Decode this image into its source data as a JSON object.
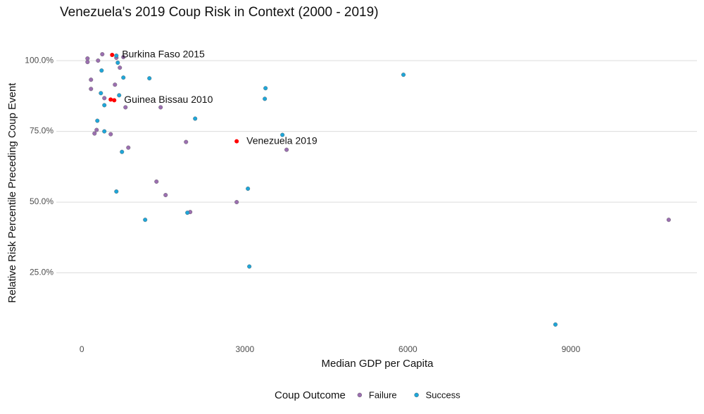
{
  "chart_data": {
    "type": "scatter",
    "title": "Venezuela's 2019 Coup Risk in Context (2000 - 2019)",
    "x_label": "Median GDP per Capita",
    "y_label": "Relative Risk Percentile Preceding Coup Event",
    "legend_title": "Coup Outcome",
    "legend_position": "bottom",
    "grid": true,
    "xlim": [
      -470,
      11320
    ],
    "xticks": [
      0,
      3000,
      6000,
      9000
    ],
    "ylim": [
      2.5,
      104
    ],
    "yticks": [
      {
        "value": 25,
        "label": "25.0%"
      },
      {
        "value": 50,
        "label": "50.0%"
      },
      {
        "value": 75,
        "label": "75.0%"
      },
      {
        "value": 100,
        "label": "100.0%"
      }
    ],
    "series": [
      {
        "name": "Failure",
        "color": "#9b6fb0",
        "x": [
          104,
          104,
          298,
          376,
          764,
          635,
          699,
          609,
          168,
          168,
          414,
          803,
          1450,
          272,
          233,
          531,
          855,
          1917,
          3768,
          1373,
          1541,
          2849,
          1994,
          10800
        ],
        "values": [
          100.75,
          99.5,
          100,
          102.25,
          101.25,
          101,
          97.5,
          91.5,
          93.25,
          90,
          86.75,
          83.5,
          83.5,
          75.5,
          74.25,
          74,
          69.25,
          71.25,
          68.5,
          57.25,
          52.5,
          50,
          46.5,
          43.75
        ]
      },
      {
        "name": "Success",
        "color": "#1ea6d9",
        "x": [
          635,
          661,
          363,
          1243,
          764,
          3380,
          5918,
          3367,
          350,
          686,
          414,
          2085,
          285,
          414,
          3691,
          738,
          635,
          3056,
          1942,
          1165,
          3082,
          8715
        ],
        "values": [
          101.75,
          99.25,
          96.5,
          93.75,
          94,
          90.25,
          95,
          86.5,
          88.5,
          87.75,
          84.25,
          79.5,
          78.75,
          75,
          73.75,
          67.75,
          53.75,
          54.75,
          46.25,
          43.75,
          27.25,
          6.75
        ]
      }
    ],
    "highlight_color": "#ff0000",
    "annotations": [
      {
        "label": "Burkina Faso 2015",
        "points": [
          [
            557,
            102
          ]
        ]
      },
      {
        "label": "Guinea Bissau 2010",
        "points": [
          [
            530,
            86.25
          ],
          [
            596,
            86
          ]
        ]
      },
      {
        "label": "Venezuela 2019",
        "points": [
          [
            2849,
            71.5
          ]
        ]
      }
    ]
  }
}
